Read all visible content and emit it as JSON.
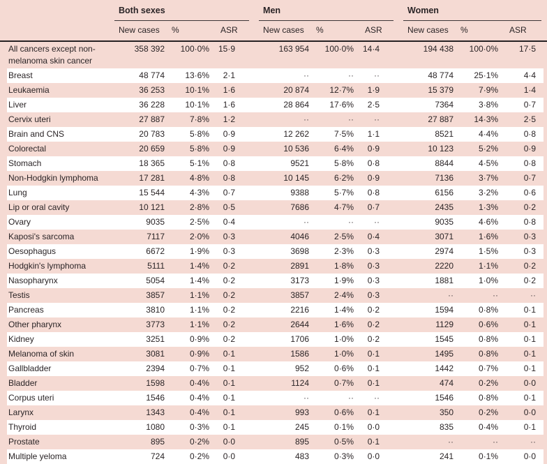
{
  "colors": {
    "background_pink": "#f5dad3",
    "stripe_white": "#ffffff",
    "text": "#2a2426",
    "rule_heavy": "#262223",
    "rule_light": "#3b3537"
  },
  "table": {
    "groups": [
      {
        "label": "Both sexes"
      },
      {
        "label": "Men"
      },
      {
        "label": "Women"
      }
    ],
    "columns": [
      "New cases",
      "%",
      "ASR"
    ],
    "missing_marker": "··",
    "rows": [
      {
        "label": "All cancers except non-melanoma skin cancer",
        "both": [
          "358 392",
          "100·0%",
          "15·9"
        ],
        "men": [
          "163 954",
          "100·0%",
          "14·4"
        ],
        "women": [
          "194 438",
          "100·0%",
          "17·5"
        ]
      },
      {
        "label": "Breast",
        "both": [
          "48 774",
          "13·6%",
          "2·1"
        ],
        "men": [
          "··",
          "··",
          "··"
        ],
        "women": [
          "48 774",
          "25·1%",
          "4·4"
        ]
      },
      {
        "label": "Leukaemia",
        "both": [
          "36 253",
          "10·1%",
          "1·6"
        ],
        "men": [
          "20 874",
          "12·7%",
          "1·9"
        ],
        "women": [
          "15 379",
          "7·9%",
          "1·4"
        ]
      },
      {
        "label": "Liver",
        "both": [
          "36 228",
          "10·1%",
          "1·6"
        ],
        "men": [
          "28 864",
          "17·6%",
          "2·5"
        ],
        "women": [
          "7364",
          "3·8%",
          "0·7"
        ]
      },
      {
        "label": "Cervix uteri",
        "both": [
          "27 887",
          "7·8%",
          "1·2"
        ],
        "men": [
          "··",
          "··",
          "··"
        ],
        "women": [
          "27 887",
          "14·3%",
          "2·5"
        ]
      },
      {
        "label": "Brain and CNS",
        "both": [
          "20 783",
          "5·8%",
          "0·9"
        ],
        "men": [
          "12 262",
          "7·5%",
          "1·1"
        ],
        "women": [
          "8521",
          "4·4%",
          "0·8"
        ]
      },
      {
        "label": "Colorectal",
        "both": [
          "20 659",
          "5·8%",
          "0·9"
        ],
        "men": [
          "10 536",
          "6·4%",
          "0·9"
        ],
        "women": [
          "10 123",
          "5·2%",
          "0·9"
        ]
      },
      {
        "label": "Stomach",
        "both": [
          "18 365",
          "5·1%",
          "0·8"
        ],
        "men": [
          "9521",
          "5·8%",
          "0·8"
        ],
        "women": [
          "8844",
          "4·5%",
          "0·8"
        ]
      },
      {
        "label": "Non-Hodgkin lymphoma",
        "both": [
          "17 281",
          "4·8%",
          "0·8"
        ],
        "men": [
          "10 145",
          "6·2%",
          "0·9"
        ],
        "women": [
          "7136",
          "3·7%",
          "0·7"
        ]
      },
      {
        "label": "Lung",
        "both": [
          "15 544",
          "4·3%",
          "0·7"
        ],
        "men": [
          "9388",
          "5·7%",
          "0·8"
        ],
        "women": [
          "6156",
          "3·2%",
          "0·6"
        ]
      },
      {
        "label": "Lip or oral cavity",
        "both": [
          "10 121",
          "2·8%",
          "0·5"
        ],
        "men": [
          "7686",
          "4·7%",
          "0·7"
        ],
        "women": [
          "2435",
          "1·3%",
          "0·2"
        ]
      },
      {
        "label": "Ovary",
        "both": [
          "9035",
          "2·5%",
          "0·4"
        ],
        "men": [
          "··",
          "··",
          "··"
        ],
        "women": [
          "9035",
          "4·6%",
          "0·8"
        ]
      },
      {
        "label": "Kaposi's sarcoma",
        "both": [
          "7117",
          "2·0%",
          "0·3"
        ],
        "men": [
          "4046",
          "2·5%",
          "0·4"
        ],
        "women": [
          "3071",
          "1·6%",
          "0·3"
        ]
      },
      {
        "label": "Oesophagus",
        "both": [
          "6672",
          "1·9%",
          "0·3"
        ],
        "men": [
          "3698",
          "2·3%",
          "0·3"
        ],
        "women": [
          "2974",
          "1·5%",
          "0·3"
        ]
      },
      {
        "label": "Hodgkin's lymphoma",
        "both": [
          "5111",
          "1·4%",
          "0·2"
        ],
        "men": [
          "2891",
          "1·8%",
          "0·3"
        ],
        "women": [
          "2220",
          "1·1%",
          "0·2"
        ]
      },
      {
        "label": "Nasopharynx",
        "both": [
          "5054",
          "1·4%",
          "0·2"
        ],
        "men": [
          "3173",
          "1·9%",
          "0·3"
        ],
        "women": [
          "1881",
          "1·0%",
          "0·2"
        ]
      },
      {
        "label": "Testis",
        "both": [
          "3857",
          "1·1%",
          "0·2"
        ],
        "men": [
          "3857",
          "2·4%",
          "0·3"
        ],
        "women": [
          "··",
          "··",
          "··"
        ]
      },
      {
        "label": "Pancreas",
        "both": [
          "3810",
          "1·1%",
          "0·2"
        ],
        "men": [
          "2216",
          "1·4%",
          "0·2"
        ],
        "women": [
          "1594",
          "0·8%",
          "0·1"
        ]
      },
      {
        "label": "Other pharynx",
        "both": [
          "3773",
          "1·1%",
          "0·2"
        ],
        "men": [
          "2644",
          "1·6%",
          "0·2"
        ],
        "women": [
          "1129",
          "0·6%",
          "0·1"
        ]
      },
      {
        "label": "Kidney",
        "both": [
          "3251",
          "0·9%",
          "0·2"
        ],
        "men": [
          "1706",
          "1·0%",
          "0·2"
        ],
        "women": [
          "1545",
          "0·8%",
          "0·1"
        ]
      },
      {
        "label": "Melanoma of skin",
        "both": [
          "3081",
          "0·9%",
          "0·1"
        ],
        "men": [
          "1586",
          "1·0%",
          "0·1"
        ],
        "women": [
          "1495",
          "0·8%",
          "0·1"
        ]
      },
      {
        "label": "Gallbladder",
        "both": [
          "2394",
          "0·7%",
          "0·1"
        ],
        "men": [
          "952",
          "0·6%",
          "0·1"
        ],
        "women": [
          "1442",
          "0·7%",
          "0·1"
        ]
      },
      {
        "label": "Bladder",
        "both": [
          "1598",
          "0·4%",
          "0·1"
        ],
        "men": [
          "1124",
          "0·7%",
          "0·1"
        ],
        "women": [
          "474",
          "0·2%",
          "0·0"
        ]
      },
      {
        "label": "Corpus uteri",
        "both": [
          "1546",
          "0·4%",
          "0·1"
        ],
        "men": [
          "··",
          "··",
          "··"
        ],
        "women": [
          "1546",
          "0·8%",
          "0·1"
        ]
      },
      {
        "label": "Larynx",
        "both": [
          "1343",
          "0·4%",
          "0·1"
        ],
        "men": [
          "993",
          "0·6%",
          "0·1"
        ],
        "women": [
          "350",
          "0·2%",
          "0·0"
        ]
      },
      {
        "label": "Thyroid",
        "both": [
          "1080",
          "0·3%",
          "0·1"
        ],
        "men": [
          "245",
          "0·1%",
          "0·0"
        ],
        "women": [
          "835",
          "0·4%",
          "0·1"
        ]
      },
      {
        "label": "Prostate",
        "both": [
          "895",
          "0·2%",
          "0·0"
        ],
        "men": [
          "895",
          "0·5%",
          "0·1"
        ],
        "women": [
          "··",
          "··",
          "··"
        ]
      },
      {
        "label": "Multiple yeloma",
        "both": [
          "724",
          "0·2%",
          "0·0"
        ],
        "men": [
          "483",
          "0·3%",
          "0·0"
        ],
        "women": [
          "241",
          "0·1%",
          "0·0"
        ]
      }
    ]
  }
}
